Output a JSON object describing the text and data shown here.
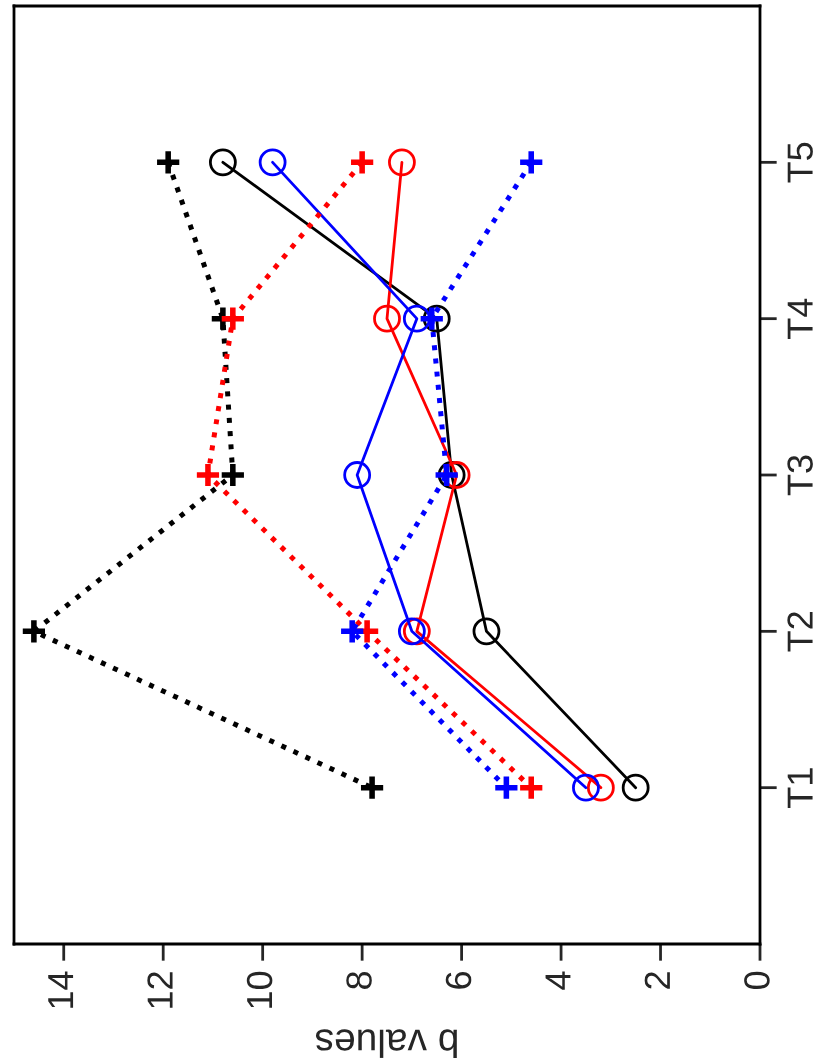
{
  "chart_data": {
    "type": "line",
    "orientation": "horizontal",
    "xlabel": "b values",
    "categories": [
      "T5",
      "T4",
      "T3",
      "T2",
      "T1"
    ],
    "xlim": [
      15,
      0
    ],
    "xticks": [
      14,
      12,
      10,
      8,
      6,
      4,
      2,
      0
    ],
    "grid": false,
    "legend": false,
    "series": [
      {
        "color": "#000000",
        "marker": "circle",
        "line_style": "solid",
        "values": [
          10.8,
          6.5,
          6.2,
          5.5,
          2.5
        ]
      },
      {
        "color": "#ff0000",
        "marker": "circle",
        "line_style": "solid",
        "values": [
          7.2,
          7.5,
          6.1,
          6.9,
          3.2
        ]
      },
      {
        "color": "#0000ff",
        "marker": "circle",
        "line_style": "solid",
        "values": [
          9.8,
          6.9,
          8.1,
          7.0,
          3.5
        ]
      },
      {
        "color": "#000000",
        "marker": "cross",
        "line_style": "dotted",
        "values": [
          11.9,
          10.8,
          10.6,
          14.6,
          7.8
        ]
      },
      {
        "color": "#ff0000",
        "marker": "cross",
        "line_style": "dotted",
        "values": [
          8.0,
          10.6,
          11.1,
          7.9,
          4.6
        ]
      },
      {
        "color": "#0000ff",
        "marker": "cross",
        "line_style": "dotted",
        "values": [
          4.6,
          6.6,
          6.3,
          8.2,
          5.1
        ]
      }
    ]
  }
}
